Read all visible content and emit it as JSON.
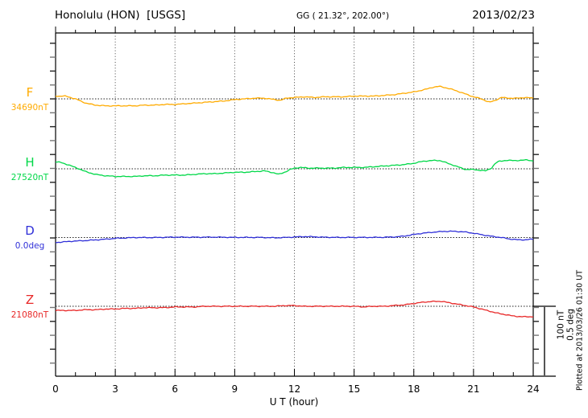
{
  "header": {
    "station": "Honolulu (HON)  [USGS]",
    "coords": "GG ( 21.32°, 202.00°)",
    "date": "2013/02/23"
  },
  "side": {
    "scale_line1": "100 nT",
    "scale_line2": "0.5 deg",
    "plotted_at": "Plotted at 2013/03/26 01:30 UT"
  },
  "chart_data": {
    "type": "line",
    "title": "Honolulu (HON) magnetogram 2013/02/23",
    "xlabel": "U T (hour)",
    "x_range": [
      0,
      24
    ],
    "x_ticks": [
      "0",
      "3",
      "6",
      "9",
      "12",
      "15",
      "18",
      "21",
      "24"
    ],
    "x_tick_hours": [
      0,
      3,
      6,
      9,
      12,
      15,
      18,
      21,
      24
    ],
    "x_minor_step_hours": 1,
    "grid": "vertical dotted lines every 3 hours; dotted horizontal baseline per trace",
    "legend_position": "left margin, one colored label per trace",
    "scale_bar": {
      "nT": 100,
      "deg": 0.5
    },
    "series": [
      {
        "name": "F",
        "unit": "nT",
        "baseline_label": "34690nT",
        "baseline_value": 34690,
        "color": "#FFAB00",
        "points": [
          [
            0,
            4
          ],
          [
            0.5,
            4
          ],
          [
            1,
            0
          ],
          [
            1.5,
            -6
          ],
          [
            2,
            -9
          ],
          [
            2.5,
            -10
          ],
          [
            3,
            -10
          ],
          [
            3.5,
            -10
          ],
          [
            4,
            -10
          ],
          [
            4.5,
            -9
          ],
          [
            5,
            -9
          ],
          [
            5.5,
            -8
          ],
          [
            6,
            -8
          ],
          [
            6.5,
            -7
          ],
          [
            7,
            -6
          ],
          [
            7.5,
            -5
          ],
          [
            8,
            -4
          ],
          [
            8.5,
            -3
          ],
          [
            9,
            -1
          ],
          [
            9.5,
            0
          ],
          [
            10,
            1
          ],
          [
            10.5,
            1
          ],
          [
            11,
            -1
          ],
          [
            11.3,
            -2
          ],
          [
            11.6,
            1
          ],
          [
            12,
            2
          ],
          [
            12.5,
            3
          ],
          [
            13,
            2
          ],
          [
            13.5,
            3
          ],
          [
            14,
            3
          ],
          [
            14.5,
            3
          ],
          [
            15,
            4
          ],
          [
            15.5,
            4
          ],
          [
            16,
            4
          ],
          [
            16.5,
            5
          ],
          [
            17,
            6
          ],
          [
            17.5,
            8
          ],
          [
            18,
            10
          ],
          [
            18.5,
            13
          ],
          [
            19,
            17
          ],
          [
            19.3,
            18
          ],
          [
            19.6,
            16
          ],
          [
            20,
            13
          ],
          [
            20.5,
            8
          ],
          [
            21,
            3
          ],
          [
            21.4,
            0
          ],
          [
            21.8,
            -5
          ],
          [
            22.1,
            -2
          ],
          [
            22.4,
            2
          ],
          [
            22.8,
            1
          ],
          [
            23.2,
            1
          ],
          [
            23.6,
            2
          ],
          [
            24,
            1
          ]
        ]
      },
      {
        "name": "H",
        "unit": "nT",
        "baseline_label": "27520nT",
        "baseline_value": 27520,
        "color": "#00D848",
        "points": [
          [
            0,
            10
          ],
          [
            0.3,
            9
          ],
          [
            0.6,
            6
          ],
          [
            1,
            2
          ],
          [
            1.5,
            -4
          ],
          [
            2,
            -8
          ],
          [
            2.5,
            -10
          ],
          [
            3,
            -11
          ],
          [
            3.5,
            -11
          ],
          [
            4,
            -11
          ],
          [
            4.5,
            -10
          ],
          [
            5,
            -10
          ],
          [
            5.5,
            -9
          ],
          [
            6,
            -9
          ],
          [
            6.5,
            -9
          ],
          [
            7,
            -8
          ],
          [
            7.5,
            -7
          ],
          [
            8,
            -7
          ],
          [
            8.5,
            -6
          ],
          [
            9,
            -5
          ],
          [
            9.5,
            -5
          ],
          [
            10,
            -4
          ],
          [
            10.5,
            -3
          ],
          [
            11,
            -6
          ],
          [
            11.2,
            -8
          ],
          [
            11.5,
            -5
          ],
          [
            11.8,
            -1
          ],
          [
            12,
            1
          ],
          [
            12.3,
            2
          ],
          [
            12.7,
            1
          ],
          [
            13,
            1
          ],
          [
            13.5,
            1
          ],
          [
            14,
            1
          ],
          [
            14.5,
            2
          ],
          [
            15,
            2
          ],
          [
            15.5,
            2
          ],
          [
            16,
            3
          ],
          [
            16.5,
            4
          ],
          [
            17,
            5
          ],
          [
            17.5,
            6
          ],
          [
            18,
            8
          ],
          [
            18.5,
            11
          ],
          [
            19,
            12
          ],
          [
            19.3,
            12
          ],
          [
            19.6,
            9
          ],
          [
            20,
            5
          ],
          [
            20.3,
            2
          ],
          [
            20.6,
            -1
          ],
          [
            21,
            -1
          ],
          [
            21.3,
            -2
          ],
          [
            21.6,
            -3
          ],
          [
            21.9,
            1
          ],
          [
            22.1,
            8
          ],
          [
            22.3,
            11
          ],
          [
            22.6,
            12
          ],
          [
            23,
            12
          ],
          [
            23.4,
            12
          ],
          [
            23.7,
            13
          ],
          [
            24,
            11
          ]
        ]
      },
      {
        "name": "D",
        "unit": "deg",
        "baseline_label": "0.0deg",
        "baseline_value": 0.0,
        "color": "#3030D8",
        "points": [
          [
            0,
            -0.036
          ],
          [
            0.5,
            -0.03
          ],
          [
            1,
            -0.025
          ],
          [
            1.5,
            -0.022
          ],
          [
            2,
            -0.017
          ],
          [
            2.5,
            -0.012
          ],
          [
            3,
            -0.006
          ],
          [
            3.5,
            -0.003
          ],
          [
            4,
            0
          ],
          [
            5,
            0
          ],
          [
            6,
            0.003
          ],
          [
            7,
            0.002
          ],
          [
            8,
            0.003
          ],
          [
            9,
            0.001
          ],
          [
            10,
            0.001
          ],
          [
            10.5,
            0
          ],
          [
            11,
            -0.002
          ],
          [
            11.5,
            0
          ],
          [
            12,
            0.004
          ],
          [
            12.5,
            0.007
          ],
          [
            13,
            0.005
          ],
          [
            13.5,
            0.002
          ],
          [
            14,
            0.001
          ],
          [
            15,
            0.001
          ],
          [
            16,
            0.001
          ],
          [
            16.5,
            0.002
          ],
          [
            17,
            0.004
          ],
          [
            17.5,
            0.01
          ],
          [
            18,
            0.022
          ],
          [
            18.5,
            0.032
          ],
          [
            19,
            0.039
          ],
          [
            19.5,
            0.044
          ],
          [
            20,
            0.045
          ],
          [
            20.5,
            0.041
          ],
          [
            21,
            0.031
          ],
          [
            21.5,
            0.018
          ],
          [
            22,
            0.007
          ],
          [
            22.4,
            0
          ],
          [
            22.8,
            -0.01
          ],
          [
            23.2,
            -0.016
          ],
          [
            23.6,
            -0.016
          ],
          [
            24,
            -0.012
          ]
        ]
      },
      {
        "name": "Z",
        "unit": "nT",
        "baseline_label": "21080nT",
        "baseline_value": 21080,
        "color": "#E82828",
        "points": [
          [
            0,
            -6
          ],
          [
            0.5,
            -6
          ],
          [
            1,
            -6
          ],
          [
            1.5,
            -5
          ],
          [
            2,
            -5
          ],
          [
            2.5,
            -4
          ],
          [
            3,
            -4
          ],
          [
            3.5,
            -3
          ],
          [
            4,
            -3
          ],
          [
            4.5,
            -2
          ],
          [
            5,
            -2
          ],
          [
            5.5,
            -2
          ],
          [
            6,
            -1
          ],
          [
            6.5,
            -1
          ],
          [
            7,
            -1
          ],
          [
            7.5,
            0
          ],
          [
            8,
            0
          ],
          [
            9,
            0
          ],
          [
            10,
            0
          ],
          [
            11,
            0
          ],
          [
            11.5,
            1
          ],
          [
            12,
            1
          ],
          [
            12.5,
            0
          ],
          [
            13,
            0
          ],
          [
            14,
            0
          ],
          [
            15,
            0
          ],
          [
            15.5,
            -1
          ],
          [
            16,
            0
          ],
          [
            16.5,
            0
          ],
          [
            17,
            1
          ],
          [
            17.5,
            2
          ],
          [
            18,
            4
          ],
          [
            18.5,
            6
          ],
          [
            19,
            7
          ],
          [
            19.4,
            7
          ],
          [
            19.8,
            5
          ],
          [
            20.2,
            3
          ],
          [
            20.6,
            1
          ],
          [
            21,
            -1
          ],
          [
            21.4,
            -4
          ],
          [
            21.8,
            -7
          ],
          [
            22.2,
            -10
          ],
          [
            22.6,
            -12
          ],
          [
            23,
            -14
          ],
          [
            23.4,
            -15
          ],
          [
            23.7,
            -15
          ],
          [
            24,
            -15
          ]
        ]
      }
    ]
  }
}
